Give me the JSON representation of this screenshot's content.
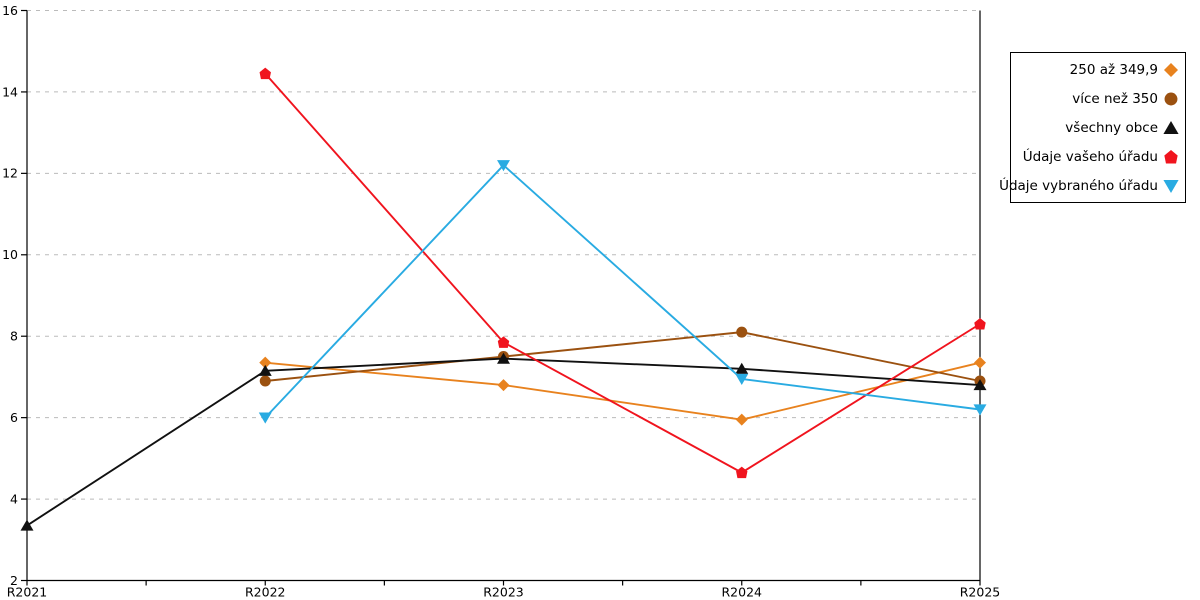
{
  "chart_data": {
    "type": "line",
    "categories": [
      "R2021",
      "R2022",
      "R2023",
      "R2024",
      "R2025"
    ],
    "series": [
      {
        "name": "250 až 349,9",
        "color": "#E8821E",
        "marker": "diamond",
        "values": [
          null,
          7.35,
          6.8,
          5.95,
          7.35
        ]
      },
      {
        "name": "více než 350",
        "color": "#9B5110",
        "marker": "circle",
        "values": [
          null,
          6.9,
          7.5,
          8.1,
          6.9
        ]
      },
      {
        "name": "všechny obce",
        "color": "#111111",
        "marker": "triangle-up",
        "values": [
          3.35,
          7.15,
          7.45,
          7.2,
          6.8
        ]
      },
      {
        "name": "Údaje vašeho úřadu",
        "color": "#F0141E",
        "marker": "pentagon",
        "values": [
          null,
          14.45,
          7.85,
          4.65,
          8.3
        ]
      },
      {
        "name": "Údaje vybraného úřadu",
        "color": "#29ABE2",
        "marker": "triangle-down",
        "values": [
          null,
          6.0,
          12.2,
          6.95,
          6.2
        ]
      }
    ],
    "y_axis": {
      "min": 2,
      "max": 16,
      "step": 2,
      "tick_labels": [
        "2",
        "4",
        "6",
        "8",
        "10",
        "12",
        "14",
        "16"
      ]
    },
    "x_axis": {
      "minor_ticks_between_categories": true
    },
    "grid": {
      "horizontal": true,
      "style": "dashed",
      "color": "#BBBBBB"
    },
    "frame": {
      "left": true,
      "bottom": true,
      "right": true,
      "top": false
    },
    "legend_position": "top-right",
    "title": "",
    "xlabel": "",
    "ylabel": ""
  }
}
